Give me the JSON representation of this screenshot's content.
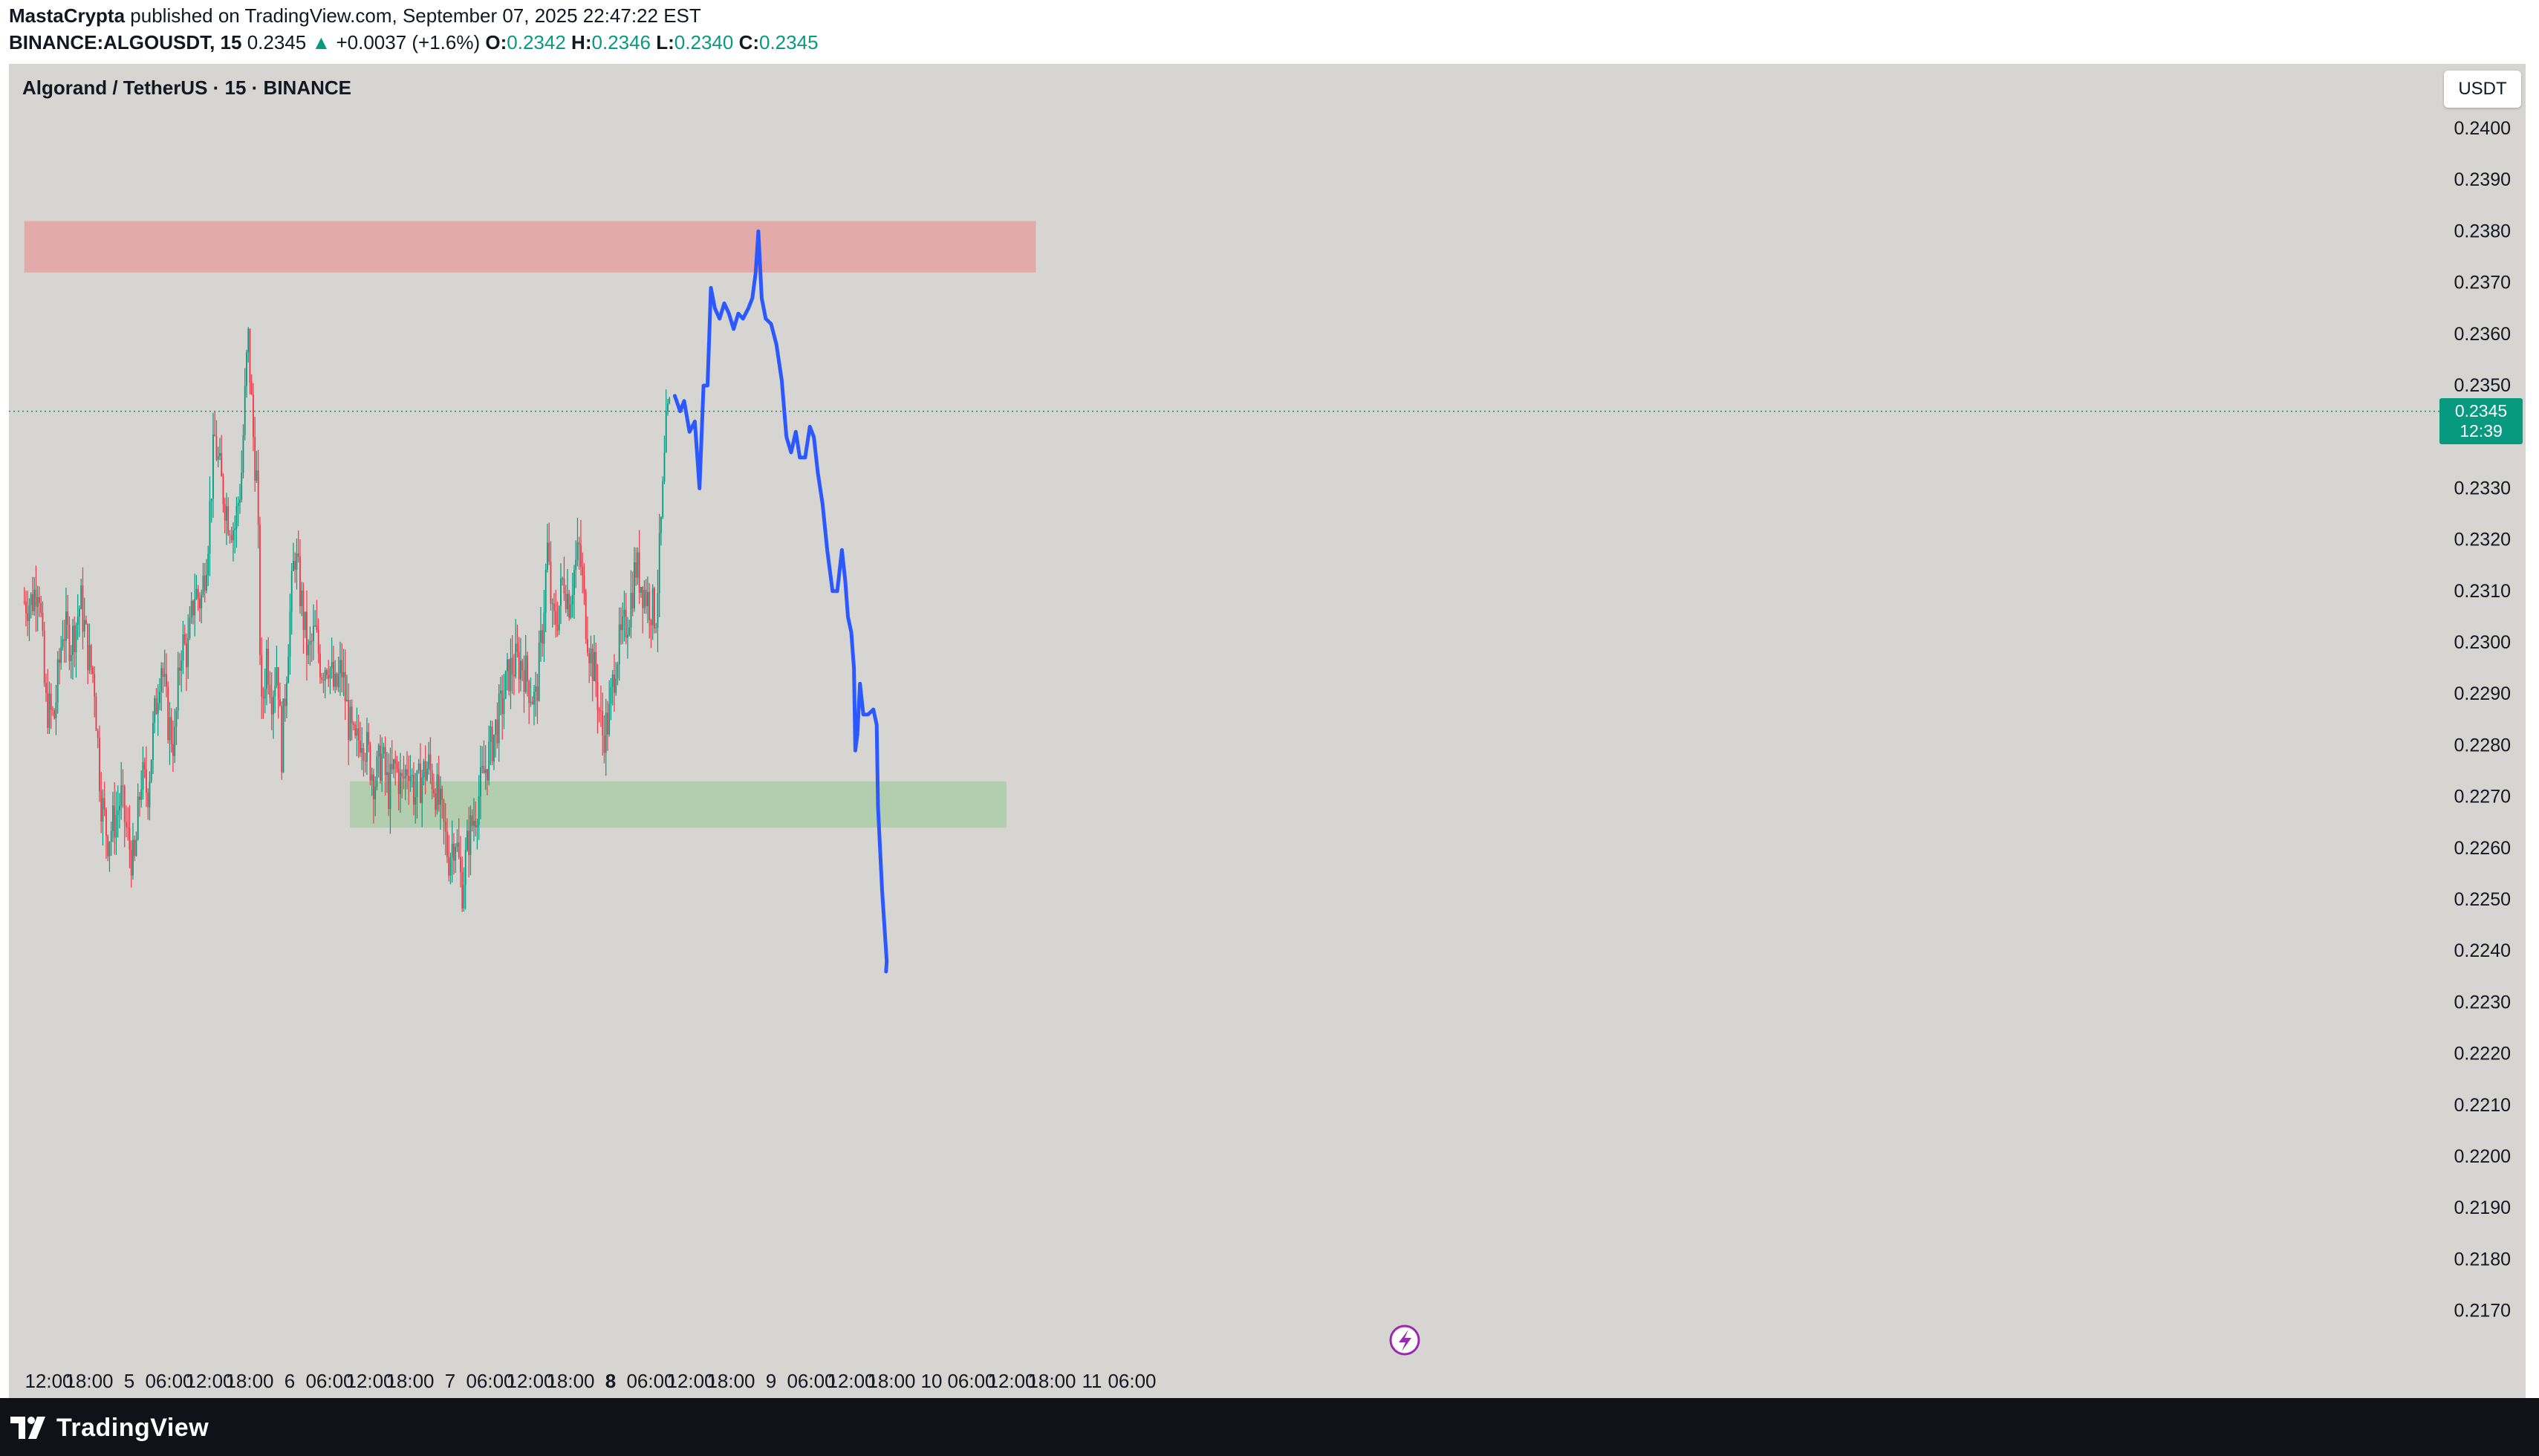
{
  "header": {
    "author": "MastaCrypta",
    "published_text": "published on TradingView.com, September 07, 2025 22:47:22 EST",
    "symbol": "BINANCE:ALGOUSDT, 15",
    "last": "0.2345",
    "change_arrow": "▲",
    "change": "+0.0037 (+1.6%)",
    "o_label": "O:",
    "o": "0.2342",
    "h_label": "H:",
    "h": "0.2346",
    "l_label": "L:",
    "l": "0.2340",
    "c_label": "C:",
    "c": "0.2345"
  },
  "chart_title": "Algorand / TetherUS · 15 · BINANCE",
  "currency_badge": "USDT",
  "price_badge": {
    "price": "0.2345",
    "countdown": "12:39"
  },
  "footer": {
    "logo_text": "TradingView",
    "logo_icon": "tradingview-logo-icon"
  },
  "colors": {
    "up": "#089981",
    "down": "#f23645",
    "background": "#d6d5d1",
    "resistance_zone": "#e3aaaa",
    "support_zone": "#b3ceae",
    "projection": "#2b59ff"
  },
  "chart_data": {
    "type": "candlestick",
    "title": "Algorand / TetherUS · 15 · BINANCE",
    "xlabel": "",
    "ylabel": "",
    "ylim": [
      0.2163,
      0.2407
    ],
    "y_ticks": [
      "0.2400",
      "0.2390",
      "0.2380",
      "0.2370",
      "0.2360",
      "0.2350",
      "0.2340",
      "0.2330",
      "0.2320",
      "0.2310",
      "0.2300",
      "0.2290",
      "0.2280",
      "0.2270",
      "0.2260",
      "0.2250",
      "0.2240",
      "0.2230",
      "0.2220",
      "0.2210",
      "0.2200",
      "0.2190",
      "0.2180",
      "0.2170"
    ],
    "x_ticks": [
      {
        "label": "12:00",
        "t": 0
      },
      {
        "label": "18:00",
        "t": 6
      },
      {
        "label": "5",
        "t": 12,
        "bold": false
      },
      {
        "label": "06:00",
        "t": 18
      },
      {
        "label": "12:00",
        "t": 24
      },
      {
        "label": "18:00",
        "t": 30
      },
      {
        "label": "6",
        "t": 36
      },
      {
        "label": "06:00",
        "t": 42
      },
      {
        "label": "12:00",
        "t": 48
      },
      {
        "label": "18:00",
        "t": 54
      },
      {
        "label": "7",
        "t": 60
      },
      {
        "label": "06:00",
        "t": 66
      },
      {
        "label": "12:00",
        "t": 72
      },
      {
        "label": "18:00",
        "t": 78
      },
      {
        "label": "8",
        "t": 84,
        "bold": true
      },
      {
        "label": "06:00",
        "t": 90
      },
      {
        "label": "12:00",
        "t": 96
      },
      {
        "label": "18:00",
        "t": 102
      },
      {
        "label": "9",
        "t": 108
      },
      {
        "label": "06:00",
        "t": 114
      },
      {
        "label": "12:00",
        "t": 120
      },
      {
        "label": "18:00",
        "t": 126
      },
      {
        "label": "10",
        "t": 132
      },
      {
        "label": "06:00",
        "t": 138
      },
      {
        "label": "12:00",
        "t": 144
      },
      {
        "label": "18:00",
        "t": 150
      },
      {
        "label": "11",
        "t": 156
      },
      {
        "label": "06:00",
        "t": 162
      }
    ],
    "x_unit": "hours since first tick",
    "price_anchors": [
      [
        -2.3,
        0.2308
      ],
      [
        -1.3,
        0.2313
      ],
      [
        -0.3,
        0.2288
      ],
      [
        1.0,
        0.2285
      ],
      [
        2.3,
        0.2303
      ],
      [
        3.6,
        0.23
      ],
      [
        5.0,
        0.2308
      ],
      [
        6.2,
        0.2297
      ],
      [
        7.0,
        0.2293
      ],
      [
        8.0,
        0.227
      ],
      [
        9.0,
        0.2262
      ],
      [
        10.2,
        0.2266
      ],
      [
        11.0,
        0.227
      ],
      [
        12.0,
        0.2262
      ],
      [
        13.0,
        0.2256
      ],
      [
        14.0,
        0.2274
      ],
      [
        15.0,
        0.2271
      ],
      [
        16.0,
        0.2285
      ],
      [
        17.0,
        0.2297
      ],
      [
        18.0,
        0.2285
      ],
      [
        19.0,
        0.228
      ],
      [
        20.0,
        0.23
      ],
      [
        21.0,
        0.2298
      ],
      [
        22.0,
        0.231
      ],
      [
        23.0,
        0.2308
      ],
      [
        24.0,
        0.232
      ],
      [
        25.0,
        0.234
      ],
      [
        26.0,
        0.2331
      ],
      [
        27.0,
        0.2325
      ],
      [
        28.0,
        0.2322
      ],
      [
        29.0,
        0.2332
      ],
      [
        30.0,
        0.236
      ],
      [
        30.8,
        0.234
      ],
      [
        31.4,
        0.233
      ],
      [
        32.0,
        0.2285
      ],
      [
        32.8,
        0.2298
      ],
      [
        33.6,
        0.229
      ],
      [
        34.4,
        0.2297
      ],
      [
        35.0,
        0.2278
      ],
      [
        36.0,
        0.23
      ],
      [
        37.0,
        0.2318
      ],
      [
        38.0,
        0.2308
      ],
      [
        39.0,
        0.2297
      ],
      [
        40.0,
        0.2302
      ],
      [
        41.0,
        0.2295
      ],
      [
        42.0,
        0.2297
      ],
      [
        43.0,
        0.229
      ],
      [
        44.0,
        0.2295
      ],
      [
        45.0,
        0.2285
      ],
      [
        46.0,
        0.2279
      ],
      [
        47.0,
        0.2283
      ],
      [
        48.0,
        0.2278
      ],
      [
        49.0,
        0.2273
      ],
      [
        50.0,
        0.2278
      ],
      [
        51.0,
        0.2271
      ],
      [
        52.0,
        0.2276
      ],
      [
        53.0,
        0.2272
      ],
      [
        54.0,
        0.2277
      ],
      [
        55.0,
        0.227
      ],
      [
        56.0,
        0.2274
      ],
      [
        57.0,
        0.2276
      ],
      [
        58.0,
        0.2272
      ],
      [
        59.0,
        0.2266
      ],
      [
        60.0,
        0.2258
      ],
      [
        61.0,
        0.2263
      ],
      [
        62.0,
        0.2252
      ],
      [
        63.0,
        0.2262
      ],
      [
        64.0,
        0.2267
      ],
      [
        65.0,
        0.2273
      ],
      [
        66.0,
        0.2278
      ],
      [
        67.0,
        0.2283
      ],
      [
        68.0,
        0.2288
      ],
      [
        69.0,
        0.2294
      ],
      [
        70.0,
        0.2296
      ],
      [
        71.0,
        0.2296
      ],
      [
        72.0,
        0.2292
      ],
      [
        73.0,
        0.2288
      ],
      [
        74.0,
        0.2302
      ],
      [
        74.8,
        0.2318
      ],
      [
        75.6,
        0.2303
      ],
      [
        76.4,
        0.2306
      ],
      [
        77.2,
        0.2313
      ],
      [
        78.0,
        0.2308
      ],
      [
        78.8,
        0.2314
      ],
      [
        79.6,
        0.2318
      ],
      [
        80.4,
        0.2306
      ],
      [
        81.2,
        0.2298
      ],
      [
        82.0,
        0.2293
      ],
      [
        83.0,
        0.2282
      ],
      [
        84.0,
        0.2285
      ],
      [
        85.0,
        0.2297
      ],
      [
        86.0,
        0.2301
      ],
      [
        87.0,
        0.2306
      ],
      [
        88.0,
        0.2315
      ],
      [
        89.0,
        0.2311
      ],
      [
        90.0,
        0.2308
      ],
      [
        91.0,
        0.2305
      ],
      [
        91.6,
        0.2318
      ],
      [
        92.2,
        0.2332
      ],
      [
        92.6,
        0.2342
      ],
      [
        93.0,
        0.2345
      ]
    ],
    "support_zone": {
      "y_low": 0.2264,
      "y_high": 0.2273,
      "t_start": 45.0,
      "t_end": 143.2
    },
    "resistance_zone": {
      "y_low": 0.2372,
      "y_high": 0.2382,
      "t_start": -3.7,
      "t_end": 147.6
    },
    "current_price": 0.2345,
    "projection": [
      [
        93.6,
        0.2348
      ],
      [
        94.4,
        0.2345
      ],
      [
        95.0,
        0.2347
      ],
      [
        95.8,
        0.2341
      ],
      [
        96.6,
        0.2343
      ],
      [
        97.3,
        0.233
      ],
      [
        97.9,
        0.235
      ],
      [
        98.5,
        0.235
      ],
      [
        99.0,
        0.2369
      ],
      [
        99.6,
        0.2365
      ],
      [
        100.3,
        0.2363
      ],
      [
        101.0,
        0.2366
      ],
      [
        101.7,
        0.2364
      ],
      [
        102.4,
        0.2361
      ],
      [
        103.1,
        0.2364
      ],
      [
        103.8,
        0.2363
      ],
      [
        104.6,
        0.2365
      ],
      [
        105.2,
        0.2367
      ],
      [
        105.7,
        0.2372
      ],
      [
        106.1,
        0.238
      ],
      [
        106.6,
        0.2367
      ],
      [
        107.2,
        0.2363
      ],
      [
        108.0,
        0.2362
      ],
      [
        108.8,
        0.2358
      ],
      [
        109.6,
        0.2351
      ],
      [
        110.3,
        0.234
      ],
      [
        111.0,
        0.2337
      ],
      [
        111.7,
        0.2341
      ],
      [
        112.3,
        0.2336
      ],
      [
        113.1,
        0.2336
      ],
      [
        113.8,
        0.2342
      ],
      [
        114.4,
        0.234
      ],
      [
        115.0,
        0.2333
      ],
      [
        115.7,
        0.2327
      ],
      [
        116.4,
        0.2318
      ],
      [
        117.2,
        0.231
      ],
      [
        117.9,
        0.231
      ],
      [
        118.6,
        0.2318
      ],
      [
        119.1,
        0.2312
      ],
      [
        119.5,
        0.2305
      ],
      [
        120.0,
        0.2302
      ],
      [
        120.4,
        0.2295
      ],
      [
        120.6,
        0.2279
      ],
      [
        120.9,
        0.2282
      ],
      [
        121.3,
        0.2292
      ],
      [
        121.8,
        0.2286
      ],
      [
        122.5,
        0.2286
      ],
      [
        123.3,
        0.2287
      ],
      [
        123.8,
        0.2284
      ],
      [
        124.0,
        0.2268
      ],
      [
        124.6,
        0.2252
      ],
      [
        125.1,
        0.2242
      ],
      [
        125.3,
        0.2238
      ],
      [
        125.2,
        0.2236
      ]
    ]
  }
}
